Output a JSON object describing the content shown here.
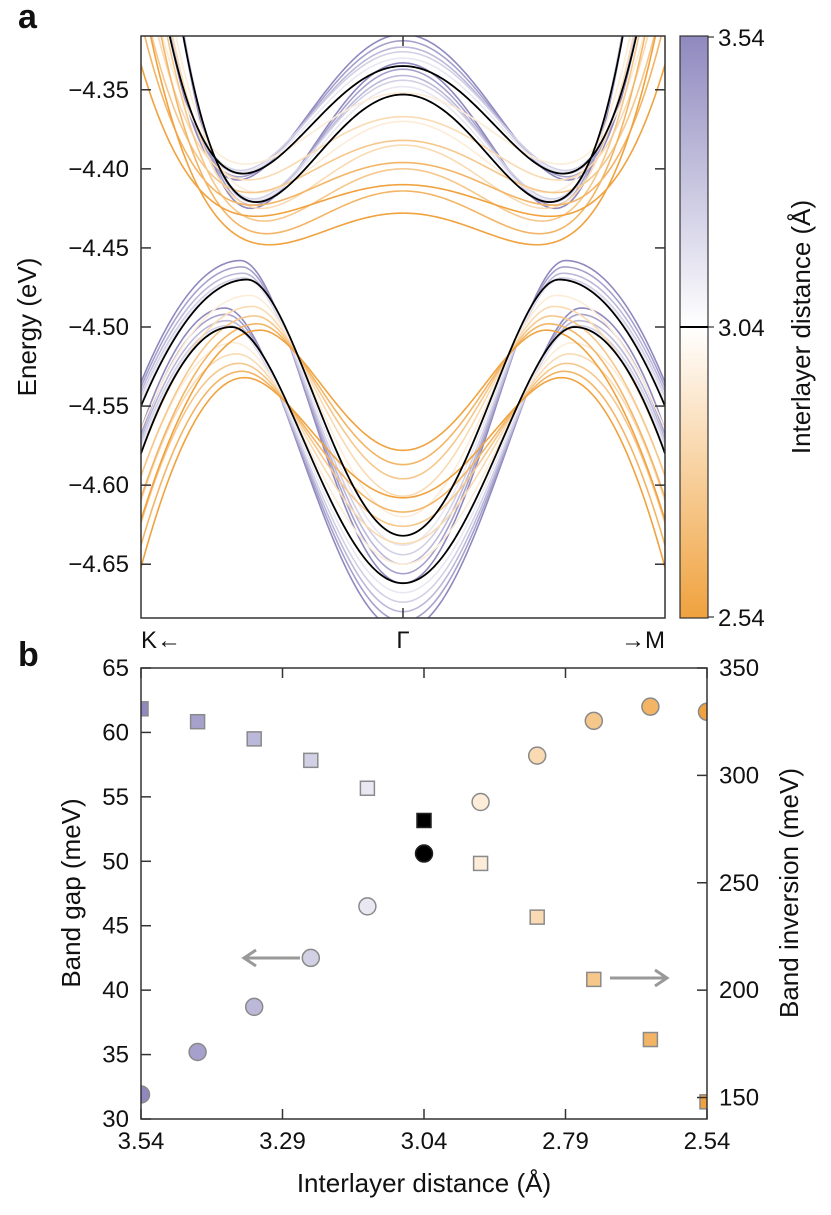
{
  "chart_data": [
    {
      "panel_label": "a",
      "type": "line",
      "ylabel": "Energy (eV)",
      "ylim": [
        -4.684,
        -4.316
      ],
      "yticks": [
        -4.35,
        -4.4,
        -4.45,
        -4.5,
        -4.55,
        -4.6,
        -4.65
      ],
      "ytick_labels": [
        "−4.35",
        "−4.40",
        "−4.45",
        "−4.50",
        "−4.55",
        "−4.60",
        "−4.65"
      ],
      "xtick_labels": [
        "K←",
        "Γ",
        "→M"
      ],
      "k_range": [
        -1,
        1
      ],
      "colorbar": {
        "label": "Interlayer distance (Å)",
        "min_label": "2.54",
        "mid_label": "3.04",
        "max_label": "3.54",
        "min": 2.54,
        "max": 3.54,
        "marker": 3.04,
        "color_low": "#f0a23e",
        "color_mid": "#ffffff",
        "color_high": "#8f89bf"
      },
      "distances": [
        3.54,
        3.44,
        3.34,
        3.24,
        3.14,
        3.04,
        2.94,
        2.84,
        2.74,
        2.64,
        2.54
      ],
      "series": [
        {
          "d": 3.54,
          "cb_gamma": -4.333,
          "cb_min": -4.425,
          "cb_min_k": 0.58,
          "vb_gamma": -4.662,
          "vb_max": -4.458,
          "vb_max_k": 0.62,
          "vb_edge": -4.535
        },
        {
          "d": 3.44,
          "cb_gamma": -4.337,
          "cb_min": -4.423,
          "cb_min_k": 0.575,
          "vb_gamma": -4.656,
          "vb_max": -4.462,
          "vb_max_k": 0.615,
          "vb_edge": -4.538
        },
        {
          "d": 3.34,
          "cb_gamma": -4.341,
          "cb_min": -4.421,
          "cb_min_k": 0.57,
          "vb_gamma": -4.65,
          "vb_max": -4.466,
          "vb_max_k": 0.61,
          "vb_edge": -4.541
        },
        {
          "d": 3.24,
          "cb_gamma": -4.344,
          "cb_min": -4.419,
          "cb_min_k": 0.57,
          "vb_gamma": -4.644,
          "vb_max": -4.469,
          "vb_max_k": 0.605,
          "vb_edge": -4.544
        },
        {
          "d": 3.14,
          "cb_gamma": -4.348,
          "cb_min": -4.42,
          "cb_min_k": 0.565,
          "vb_gamma": -4.638,
          "vb_max": -4.47,
          "vb_max_k": 0.6,
          "vb_edge": -4.547
        },
        {
          "d": 3.04,
          "cb_gamma": -4.353,
          "cb_min": -4.421,
          "cb_min_k": 0.56,
          "vb_gamma": -4.632,
          "vb_max": -4.47,
          "vb_max_k": 0.595,
          "vb_edge": -4.55
        },
        {
          "d": 2.94,
          "cb_gamma": -4.37,
          "cb_min": -4.415,
          "cb_min_k": 0.55,
          "vb_gamma": -4.62,
          "vb_max": -4.48,
          "vb_max_k": 0.585,
          "vb_edge": -4.565
        },
        {
          "d": 2.84,
          "cb_gamma": -4.385,
          "cb_min": -4.425,
          "cb_min_k": 0.54,
          "vb_gamma": -4.607,
          "vb_max": -4.487,
          "vb_max_k": 0.575,
          "vb_edge": -4.58
        },
        {
          "d": 2.74,
          "cb_gamma": -4.4,
          "cb_min": -4.433,
          "cb_min_k": 0.53,
          "vb_gamma": -4.596,
          "vb_max": -4.493,
          "vb_max_k": 0.565,
          "vb_edge": -4.594
        },
        {
          "d": 2.64,
          "cb_gamma": -4.414,
          "cb_min": -4.441,
          "cb_min_k": 0.52,
          "vb_gamma": -4.587,
          "vb_max": -4.498,
          "vb_max_k": 0.555,
          "vb_edge": -4.608
        },
        {
          "d": 2.54,
          "cb_gamma": -4.428,
          "cb_min": -4.448,
          "cb_min_k": 0.51,
          "vb_gamma": -4.578,
          "vb_max": -4.502,
          "vb_max_k": 0.545,
          "vb_edge": -4.622
        }
      ]
    },
    {
      "panel_label": "b",
      "type": "scatter",
      "xlabel": "Interlayer distance (Å)",
      "ylabel": "Band gap (meV)",
      "ylabel_right": "Band inversion (meV)",
      "xlim": [
        3.54,
        2.54
      ],
      "ylim": [
        30,
        65
      ],
      "ylim_right": [
        140,
        350
      ],
      "xticks": [
        3.54,
        3.29,
        3.04,
        2.79,
        2.54
      ],
      "xtick_labels": [
        "3.54",
        "3.29",
        "3.04",
        "2.79",
        "2.54"
      ],
      "yticks": [
        30,
        35,
        40,
        45,
        50,
        55,
        60,
        65
      ],
      "ytick_labels": [
        "30",
        "35",
        "40",
        "45",
        "50",
        "55",
        "60",
        "65"
      ],
      "yticks_right": [
        150,
        200,
        250,
        300,
        350
      ],
      "ytick_labels_right": [
        "150",
        "200",
        "250",
        "300",
        "350"
      ],
      "x": [
        3.54,
        3.44,
        3.34,
        3.24,
        3.14,
        3.04,
        2.94,
        2.84,
        2.74,
        2.64,
        2.54
      ],
      "series": [
        {
          "name": "Band gap",
          "marker": "circle",
          "axis": "left",
          "values": [
            31.9,
            35.2,
            38.7,
            42.5,
            46.5,
            50.6,
            54.6,
            58.2,
            60.9,
            62.0,
            61.6
          ]
        },
        {
          "name": "Band inversion",
          "marker": "square",
          "axis": "right",
          "values": [
            331,
            325,
            317,
            307,
            294,
            279,
            259,
            234,
            205,
            177,
            148
          ]
        }
      ]
    }
  ]
}
